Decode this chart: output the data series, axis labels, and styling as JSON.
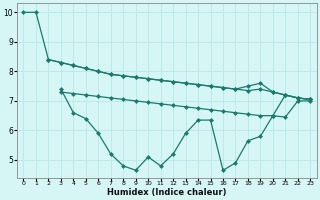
{
  "xlabel": "Humidex (Indice chaleur)",
  "background_color": "#d6f5f5",
  "grid_color": "#b8e8e8",
  "line_color": "#1a7a6e",
  "xlim": [
    -0.5,
    23.5
  ],
  "ylim": [
    4.4,
    10.3
  ],
  "yticks": [
    5,
    6,
    7,
    8,
    9,
    10
  ],
  "xticks": [
    0,
    1,
    2,
    3,
    4,
    5,
    6,
    7,
    8,
    9,
    10,
    11,
    12,
    13,
    14,
    15,
    16,
    17,
    18,
    19,
    20,
    21,
    22,
    23
  ],
  "line1_x": [
    0,
    1,
    2,
    3,
    4,
    5,
    6,
    7,
    8,
    9,
    10,
    11,
    12,
    13,
    14,
    15,
    16,
    17,
    18,
    19,
    20,
    21,
    22,
    23
  ],
  "line1_y": [
    10.0,
    10.0,
    8.4,
    8.3,
    8.2,
    8.1,
    8.0,
    7.9,
    7.85,
    7.8,
    7.75,
    7.7,
    7.65,
    7.6,
    7.55,
    7.5,
    7.45,
    7.4,
    7.5,
    7.6,
    7.3,
    7.2,
    7.1,
    7.05
  ],
  "line2_x": [
    2,
    3,
    4,
    5,
    6,
    7,
    8,
    9,
    10,
    11,
    12,
    13,
    14,
    15,
    16,
    17,
    18,
    19,
    20,
    21,
    22,
    23
  ],
  "line2_y": [
    8.4,
    8.3,
    8.2,
    8.1,
    8.0,
    7.9,
    7.85,
    7.8,
    7.75,
    7.7,
    7.65,
    7.6,
    7.55,
    7.5,
    7.45,
    7.4,
    7.35,
    7.4,
    7.3,
    7.2,
    7.1,
    7.05
  ],
  "line3_x": [
    3,
    4,
    5,
    6,
    7,
    8,
    9,
    10,
    11,
    12,
    13,
    14,
    15,
    16,
    17,
    18,
    19,
    20,
    21,
    22,
    23
  ],
  "line3_y": [
    7.3,
    7.25,
    7.2,
    7.15,
    7.1,
    7.05,
    7.0,
    6.95,
    6.9,
    6.85,
    6.8,
    6.75,
    6.7,
    6.65,
    6.6,
    6.55,
    6.5,
    6.5,
    6.45,
    7.0,
    7.0
  ],
  "line4_x": [
    3,
    4,
    5,
    6,
    7,
    8,
    9,
    10,
    11,
    12,
    13,
    14,
    15,
    16,
    17,
    18,
    19,
    20,
    21,
    22,
    23
  ],
  "line4_y": [
    7.4,
    6.6,
    6.4,
    5.9,
    5.2,
    4.8,
    4.65,
    5.1,
    4.8,
    5.2,
    5.9,
    6.35,
    6.35,
    4.65,
    4.9,
    5.65,
    5.8,
    6.5,
    7.2,
    7.1,
    7.05
  ],
  "marker_size": 2.5,
  "line_width": 0.9
}
